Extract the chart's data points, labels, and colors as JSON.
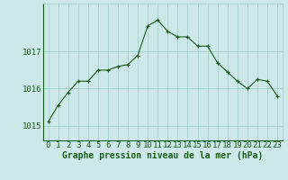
{
  "x": [
    0,
    1,
    2,
    3,
    4,
    5,
    6,
    7,
    8,
    9,
    10,
    11,
    12,
    13,
    14,
    15,
    16,
    17,
    18,
    19,
    20,
    21,
    22,
    23
  ],
  "y": [
    1015.1,
    1015.55,
    1015.9,
    1016.2,
    1016.2,
    1016.5,
    1016.5,
    1016.6,
    1016.65,
    1016.9,
    1017.7,
    1017.85,
    1017.55,
    1017.4,
    1017.4,
    1017.15,
    1017.15,
    1016.7,
    1016.45,
    1016.2,
    1016.0,
    1016.25,
    1016.2,
    1015.8
  ],
  "line_color": "#1a5c1a",
  "marker_color": "#1a5c1a",
  "bg_color": "#cce8e8",
  "grid_color": "#99cccc",
  "text_color": "#1a5c1a",
  "xlabel": "Graphe pression niveau de la mer (hPa)",
  "yticks": [
    1015,
    1016,
    1017
  ],
  "ylim": [
    1014.6,
    1018.3
  ],
  "xlim": [
    -0.5,
    23.5
  ],
  "xtick_labels": [
    "0",
    "1",
    "2",
    "3",
    "4",
    "5",
    "6",
    "7",
    "8",
    "9",
    "10",
    "11",
    "12",
    "13",
    "14",
    "15",
    "16",
    "17",
    "18",
    "19",
    "20",
    "21",
    "22",
    "23"
  ],
  "title_fontsize": 7,
  "tick_fontsize": 6.5
}
